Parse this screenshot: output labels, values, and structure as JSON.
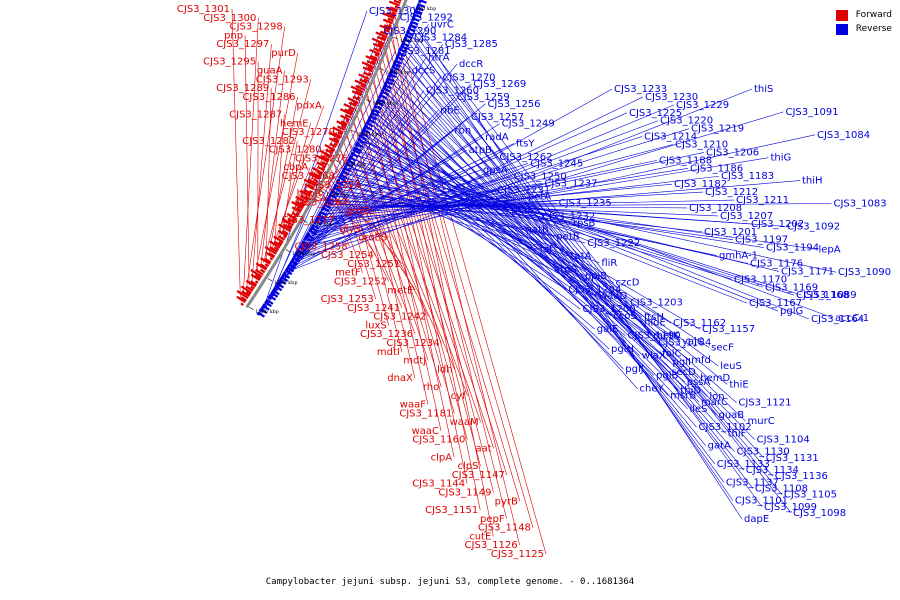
{
  "legend": {
    "forward_label": "Forward",
    "reverse_label": "Reverse",
    "forward_color": "#e00000",
    "reverse_color": "#0000e0"
  },
  "caption": "Campylobacter jejuni subsp. jejuni S3, complete genome. - 0..1681364",
  "map": {
    "tick_labels": [
      "1200 kbp",
      "1180 kbp",
      "1160 kbp",
      "1140 kbp",
      "1120 kbp",
      "1100 kbp",
      "1080 kbp",
      "1060 kbp",
      "1040 kbp",
      "1020 kbp",
      "1000 kbp"
    ],
    "forward_labels": [
      "CJS3_1301",
      "CJS3_1300",
      "CJS3_1298",
      "pnp",
      "CJS3_1297",
      "purD",
      "CJS3_1295",
      "guaA",
      "CJS3_1293",
      "CJS3_1289",
      "CJS3_1286",
      "pdxA",
      "CJS3_1287",
      "hemE",
      "CJS3_1279",
      "CJS3_1282",
      "CJS3_1280",
      "CJS3_1276",
      "cbpA",
      "CJS3_1268",
      "CJS3_1274",
      "hspR",
      "CJS3_1267",
      "groEL",
      "CJS3_1277",
      "glyS",
      "groES",
      "CJS3_1258",
      "CJS3_1254",
      "CJS3_1251",
      "metF",
      "CJS3_1252",
      "metE",
      "CJS3_1253",
      "CJS3_1241",
      "CJS3_1242",
      "luxS",
      "CJS3_1236",
      "CJS3_1234",
      "mdtI",
      "mdtJ",
      "ldh",
      "dnaX",
      "rho",
      "cyf",
      "waaF",
      "CJS3_1181",
      "waaM",
      "waaC",
      "CJS3_1160",
      "aat",
      "clpA",
      "clpS",
      "CJS3_1147",
      "CJS3_1144",
      "CJS3_1149",
      "pyrB",
      "CJS3_1151",
      "pepF",
      "CJS3_1148",
      "cutE",
      "CJS3_1126",
      "CJS3_1125"
    ],
    "reverse_labels": [
      "CJS3_1302",
      "CJS3_1292",
      "uvrC",
      "CJS3_1290",
      "CJS3_1284",
      "CJS3_1285",
      "CJS3_1281",
      "htrA",
      "dccR",
      "dccS",
      "CJS3_1270",
      "CJS3_1269",
      "CJS3_1260",
      "CJS3_1259",
      "CJS3_1256",
      "ribE",
      "CJS3_1257",
      "CJS3_1249",
      "rbn",
      "radA",
      "ftsY",
      "atpB",
      "CJS3_1262",
      "CJS3_1245",
      "gpsA",
      "CJS3_1250",
      "CJS3_1237",
      "CJS3_1231",
      "petA",
      "CJS3_1235",
      "petC",
      "CJS3_1232",
      "rpsB",
      "gatB",
      "petB",
      "CJS3_1222",
      "tsf",
      "tatA",
      "fliR",
      "argS",
      "ppiB",
      "czcD",
      "CJS3_1204",
      "waaD",
      "CJS3_1203",
      "CJS3_1200",
      "ccoS",
      "hldE",
      "galE",
      "CJS3_1190",
      "CJS3_1184",
      "pglH",
      "wlaX",
      "pglI",
      "pglJ",
      "pglB",
      "pssA",
      "cheY",
      "msrB",
      "marC",
      "CJS3_1233",
      "CJS3_1230",
      "CJS3_1229",
      "CJS3_1225",
      "CJS3_1220",
      "CJS3_1219",
      "CJS3_1214",
      "CJS3_1210",
      "CJS3_1206",
      "CJS3_1188",
      "CJS3_1186",
      "CJS3_1183",
      "CJS3_1182",
      "CJS3_1212",
      "CJS3_1211",
      "CJS3_1208",
      "CJS3_1207",
      "CJS3_1202",
      "CJS3_1201",
      "CJS3_1197",
      "CJS3_1194",
      "gmhA-1",
      "CJS3_1176",
      "CJS3_1171",
      "CJS3_1170",
      "CJS3_1169",
      "CJS3_1168",
      "CJS3_1167",
      "pglG",
      "CJS3_1164",
      "ftsH",
      "CJS3_1162",
      "CJS3_1157",
      "metK",
      "yajC",
      "secF",
      "folC",
      "mfd",
      "leuS",
      "secD",
      "hemD",
      "thiE",
      "thiD",
      "lon",
      "CJS3_1121",
      "ileS",
      "guaB",
      "murC",
      "CJS3_1102",
      "thiF",
      "CJS3_1104",
      "gatA",
      "CJS3_1130",
      "CJS3_1131",
      "CJS3_1133",
      "CJS3_1134",
      "CJS3_1136",
      "CJS3_1137",
      "CJS3_1108",
      "CJS3_1105",
      "CJS3_1101",
      "CJS3_1099",
      "CJS3_1098",
      "dapE",
      "thiS",
      "CJS3_1091",
      "CJS3_1084",
      "thiG",
      "thiH",
      "CJS3_1083",
      "CJS3_1092",
      "lepA",
      "CJS3_1090",
      "CJS3_1089",
      "accC-1"
    ]
  }
}
